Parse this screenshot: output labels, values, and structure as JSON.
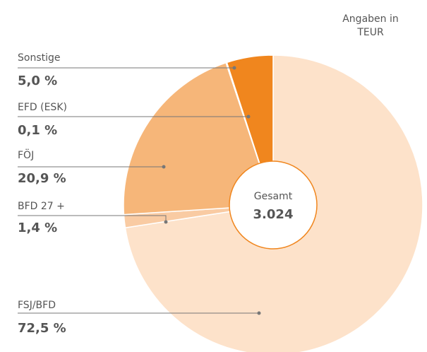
{
  "chart_data": {
    "type": "pie",
    "note": [
      "Angaben in",
      "TEUR"
    ],
    "categories": [
      "FSJ/BFD",
      "BFD 27 +",
      "FÖJ",
      "EFD (ESK)",
      "Sonstige"
    ],
    "values": [
      72.5,
      1.4,
      20.9,
      0.1,
      5.0
    ],
    "value_labels": [
      "72,5 %",
      "1,4 %",
      "20,9 %",
      "0,1 %",
      "5,0 %"
    ],
    "colors": [
      "#fde2ca",
      "#f9cba3",
      "#f6b679",
      "#f3a35a",
      "#f0861e"
    ],
    "center_label": "Gesamt",
    "center_value": "3.024"
  }
}
